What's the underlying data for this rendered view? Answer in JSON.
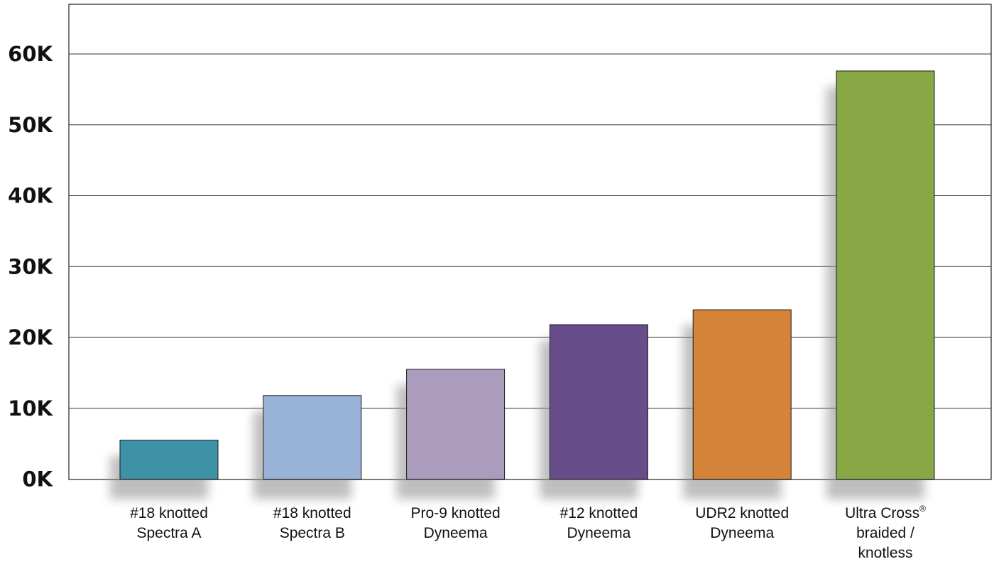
{
  "chart_data": {
    "type": "bar",
    "categories": [
      [
        "#18 knotted",
        "Spectra A"
      ],
      [
        "#18 knotted",
        "Spectra B"
      ],
      [
        "Pro-9 knotted",
        "Dyneema"
      ],
      [
        "#12 knotted",
        "Dyneema"
      ],
      [
        "UDR2 knotted",
        "Dyneema"
      ],
      [
        "Ultra Cross",
        "braided /",
        "knotless"
      ]
    ],
    "values": [
      5500,
      11800,
      15500,
      21800,
      23900,
      57600
    ],
    "colors": [
      "#3e92a8",
      "#9ab3d9",
      "#ab9cbd",
      "#674d8a",
      "#d6833a",
      "#88a846"
    ],
    "superscripts": [
      "",
      "",
      "",
      "",
      "",
      "®"
    ],
    "ylim": [
      0,
      70000
    ],
    "yticks": [
      0,
      10000,
      20000,
      30000,
      40000,
      50000,
      60000
    ],
    "ytick_labels": [
      "0K",
      "10K",
      "20K",
      "30K",
      "40K",
      "50K",
      "60K"
    ],
    "grid": true,
    "title": "",
    "xlabel": "",
    "ylabel": ""
  }
}
